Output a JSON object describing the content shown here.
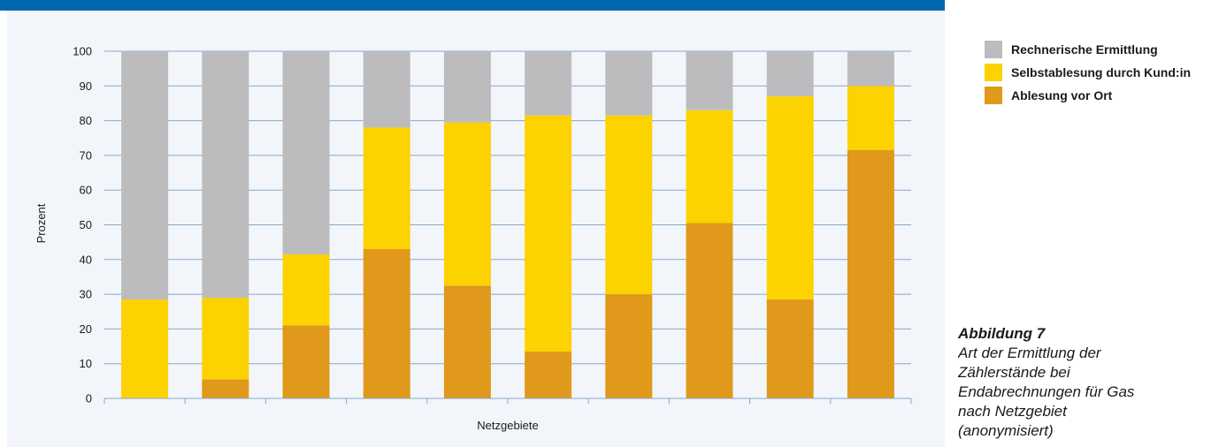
{
  "chart_data": {
    "type": "bar",
    "stacked": true,
    "xlabel": "Netzgebiete",
    "ylabel": "Prozent",
    "ylim": [
      0,
      100
    ],
    "yticks": [
      0,
      10,
      20,
      30,
      40,
      50,
      60,
      70,
      80,
      90,
      100
    ],
    "categories": [
      "",
      "",
      "",
      "",
      "",
      "",
      "",
      "",
      "",
      ""
    ],
    "series": [
      {
        "name": "Ablesung vor Ort",
        "color": "#e0991a",
        "values": [
          0,
          5.5,
          21,
          43,
          32.5,
          13.5,
          30,
          50.5,
          28.5,
          71.5
        ]
      },
      {
        "name": "Selbstablesung durch Kund:in",
        "color": "#fcd200",
        "values": [
          28.5,
          23.5,
          20.5,
          35,
          47,
          68,
          51.5,
          32.5,
          58.5,
          18.5
        ]
      },
      {
        "name": "Rechnerische Ermittlung",
        "color": "#bcbcbf",
        "values": [
          71.5,
          71,
          58.5,
          22,
          20.5,
          18.5,
          18.5,
          17,
          13,
          10
        ]
      }
    ],
    "legend_position": "right",
    "grid": true
  },
  "legend": [
    {
      "label": "Rechnerische Ermittlung",
      "color": "#bcbcbf"
    },
    {
      "label": "Selbstablesung durch Kund:in",
      "color": "#fcd200"
    },
    {
      "label": "Ablesung vor Ort",
      "color": "#e0991a"
    }
  ],
  "caption": {
    "title": "Abbildung 7",
    "text": "Art der Ermittlung der Zählerstände bei Endabrechnungen für Gas nach Netzgebiet (anonymisiert)"
  },
  "colors": {
    "header_bar": "#0068b0",
    "panel_bg": "#f2f6fb",
    "grid": "#8aa6c6"
  }
}
